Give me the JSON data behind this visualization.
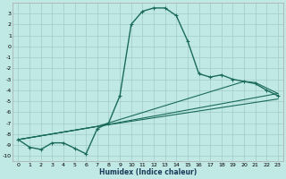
{
  "xlabel": "Humidex (Indice chaleur)",
  "bg_color": "#c0e8e4",
  "grid_color": "#a0ccc8",
  "line_color": "#1a6b5a",
  "xlim": [
    -0.5,
    23.5
  ],
  "ylim": [
    -10.5,
    4.0
  ],
  "xticks": [
    0,
    1,
    2,
    3,
    4,
    5,
    6,
    7,
    8,
    9,
    10,
    11,
    12,
    13,
    14,
    15,
    16,
    17,
    18,
    19,
    20,
    21,
    22,
    23
  ],
  "yticks": [
    3,
    2,
    1,
    0,
    -1,
    -2,
    -3,
    -4,
    -5,
    -6,
    -7,
    -8,
    -9,
    -10
  ],
  "line1_x": [
    0,
    1,
    2,
    3,
    4,
    5,
    6,
    7,
    8,
    9,
    10,
    11,
    12,
    13,
    14,
    15,
    16,
    17,
    18,
    19,
    20,
    21,
    22,
    23
  ],
  "line1_y": [
    -8.5,
    -9.2,
    -9.4,
    -8.8,
    -8.8,
    -9.3,
    -9.8,
    -7.5,
    -7.0,
    -4.5,
    2.0,
    3.2,
    3.5,
    3.5,
    2.8,
    0.5,
    -2.5,
    -2.8,
    -2.6,
    -3.0,
    -3.2,
    -3.4,
    -4.0,
    -4.5
  ],
  "line2_x": [
    0,
    7,
    23
  ],
  "line2_y": [
    -8.5,
    -7.3,
    -4.8
  ],
  "line3_x": [
    0,
    7,
    23
  ],
  "line3_y": [
    -8.5,
    -7.3,
    -4.3
  ],
  "line4_x": [
    0,
    7,
    20,
    21,
    23
  ],
  "line4_y": [
    -8.5,
    -7.3,
    -3.2,
    -3.3,
    -4.3
  ]
}
